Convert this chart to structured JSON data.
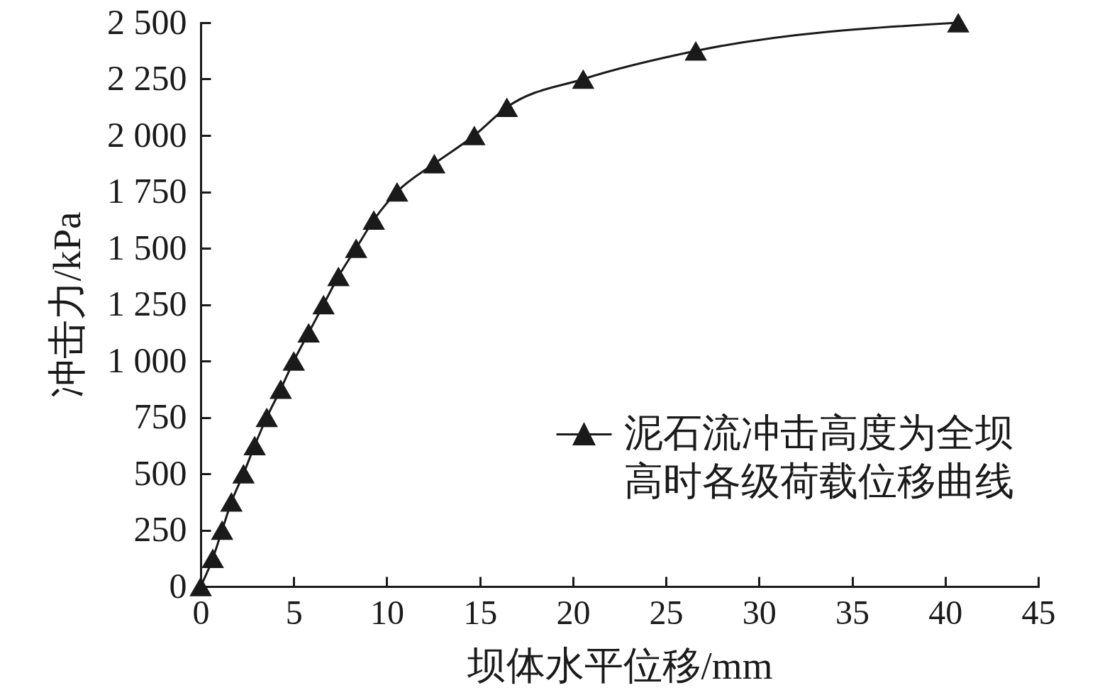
{
  "chart_data": {
    "type": "line",
    "xlabel": "坝体水平位移/mm",
    "ylabel": "冲击力/kPa",
    "x": [
      0,
      0.65,
      1.15,
      1.65,
      2.3,
      2.9,
      3.55,
      4.3,
      5.0,
      5.8,
      6.6,
      7.4,
      8.35,
      9.3,
      10.55,
      12.55,
      14.7,
      16.45,
      20.55,
      26.6,
      40.7
    ],
    "series": [
      {
        "name": "泥石流冲击高度为全坝高时各级荷载位移曲线",
        "color": "#1a1a1a",
        "values": [
          0,
          125,
          250,
          375,
          500,
          625,
          750,
          875,
          1000,
          1125,
          1250,
          1375,
          1500,
          1625,
          1750,
          1875,
          2000,
          2125,
          2250,
          2375,
          2500
        ]
      }
    ],
    "xlim": [
      0,
      45
    ],
    "ylim": [
      0,
      2500
    ],
    "xticks": [
      0,
      5,
      10,
      15,
      20,
      25,
      30,
      35,
      40,
      45
    ],
    "yticks": [
      0,
      250,
      500,
      750,
      {
        "value": 1000,
        "label": "1 000"
      },
      {
        "value": 1250,
        "label": "1 250"
      },
      {
        "value": 1500,
        "label": "1 500"
      },
      {
        "value": 1750,
        "label": "1 750"
      },
      {
        "value": 2000,
        "label": "2 000"
      },
      {
        "value": 2250,
        "label": "2 250"
      },
      {
        "value": 2500,
        "label": "2 500"
      }
    ],
    "grid": false,
    "legend": "right",
    "marker": "triangle",
    "line_style": "solid"
  }
}
